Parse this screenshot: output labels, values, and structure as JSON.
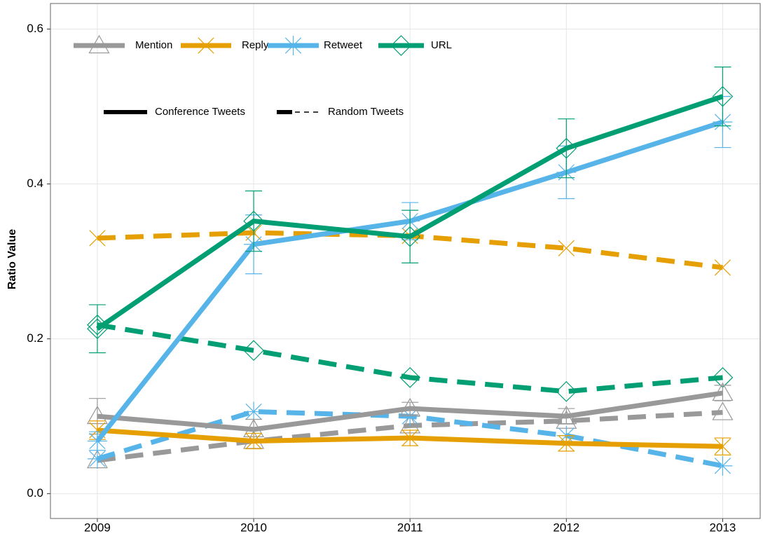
{
  "chart_data": {
    "type": "line",
    "y_label": "Ratio Value",
    "x": [
      2009,
      2010,
      2011,
      2012,
      2013
    ],
    "xlim": [
      2008.7,
      2013.24
    ],
    "xticks": [
      2009,
      2010,
      2011,
      2012,
      2013
    ],
    "ylim": [
      -0.032,
      0.633
    ],
    "yticks": [
      {
        "value": 0,
        "label": "0.0"
      },
      {
        "value": 0.2,
        "label": "0.2"
      },
      {
        "value": 0.4,
        "label": "0.4"
      },
      {
        "value": 0.6,
        "label": "0.6"
      }
    ],
    "grid": true,
    "series": [
      {
        "name": "Mention",
        "color": "#999999",
        "marker": "triangle",
        "values": [
          0.1,
          0.083,
          0.11,
          0.1,
          0.13
        ],
        "errors": [
          0.023,
          0.013,
          0.008,
          0.01,
          0.01
        ],
        "random_values": [
          0.043,
          0.068,
          0.088,
          0.094,
          0.105
        ]
      },
      {
        "name": "Reply",
        "color": "#e69f00",
        "marker": "x",
        "values": [
          0.082,
          0.068,
          0.072,
          0.065,
          0.061
        ],
        "errors": [
          0.012,
          0.01,
          0.01,
          0.01,
          0.011
        ],
        "random_values": [
          0.33,
          0.337,
          0.333,
          0.317,
          0.292
        ]
      },
      {
        "name": "Retweet",
        "color": "#56b4e9",
        "marker": "asterisk",
        "values": [
          0.068,
          0.322,
          0.352,
          0.415,
          0.48
        ],
        "errors": [
          0.012,
          0.038,
          0.024,
          0.034,
          0.033
        ],
        "random_values": [
          0.045,
          0.106,
          0.1,
          0.075,
          0.036
        ]
      },
      {
        "name": "URL",
        "color": "#009e73",
        "marker": "diamond",
        "values": [
          0.213,
          0.352,
          0.332,
          0.446,
          0.513
        ],
        "errors": [
          0.031,
          0.039,
          0.034,
          0.038,
          0.038
        ],
        "random_values": [
          0.218,
          0.185,
          0.15,
          0.132,
          0.15
        ]
      }
    ],
    "line_styles": [
      {
        "name": "Conference Tweets",
        "dash": "solid"
      },
      {
        "name": "Random Tweets",
        "dash": "dashed"
      }
    ]
  }
}
